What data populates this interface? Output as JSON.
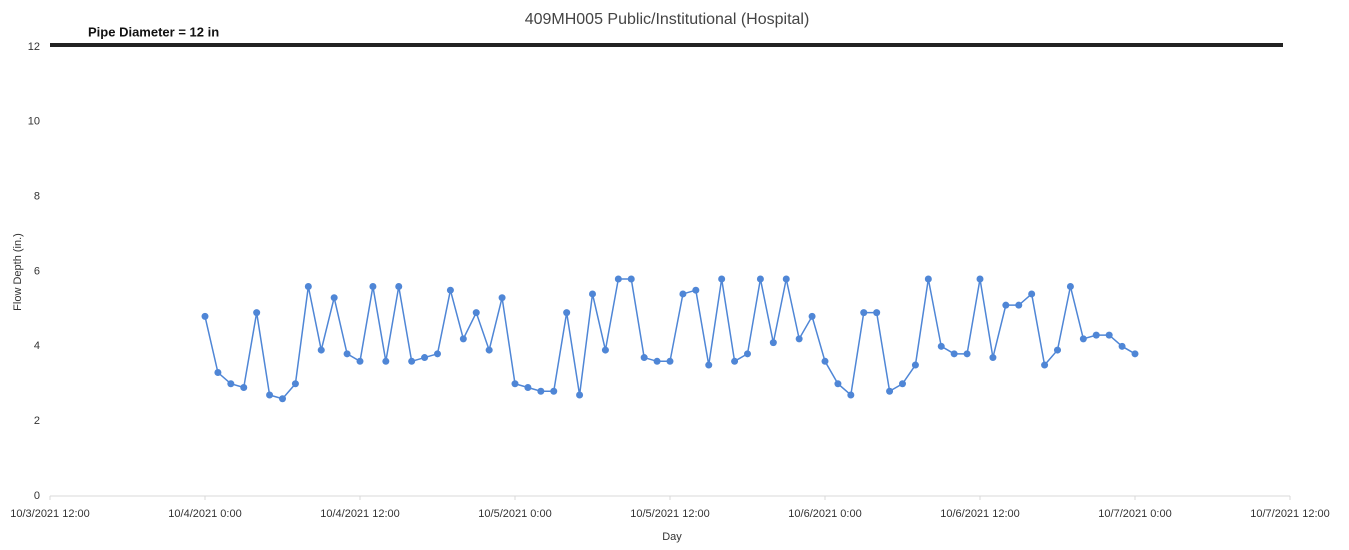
{
  "chart_data": {
    "type": "line",
    "title": "409MH005 Public/Institutional (Hospital)",
    "x_label": "Day",
    "y_label": "Flow Depth (in.)",
    "reference_line": {
      "value": 12,
      "label": "Pipe Diameter = 12 in",
      "color": "#222222"
    },
    "x": [
      "2021-10-04T00:00",
      "2021-10-04T01:00",
      "2021-10-04T02:00",
      "2021-10-04T03:00",
      "2021-10-04T04:00",
      "2021-10-04T05:00",
      "2021-10-04T06:00",
      "2021-10-04T07:00",
      "2021-10-04T08:00",
      "2021-10-04T09:00",
      "2021-10-04T10:00",
      "2021-10-04T11:00",
      "2021-10-04T12:00",
      "2021-10-04T13:00",
      "2021-10-04T14:00",
      "2021-10-04T15:00",
      "2021-10-04T16:00",
      "2021-10-04T17:00",
      "2021-10-04T18:00",
      "2021-10-04T19:00",
      "2021-10-04T20:00",
      "2021-10-04T21:00",
      "2021-10-04T22:00",
      "2021-10-04T23:00",
      "2021-10-05T00:00",
      "2021-10-05T01:00",
      "2021-10-05T02:00",
      "2021-10-05T03:00",
      "2021-10-05T04:00",
      "2021-10-05T05:00",
      "2021-10-05T06:00",
      "2021-10-05T07:00",
      "2021-10-05T08:00",
      "2021-10-05T09:00",
      "2021-10-05T10:00",
      "2021-10-05T11:00",
      "2021-10-05T12:00",
      "2021-10-05T13:00",
      "2021-10-05T14:00",
      "2021-10-05T15:00",
      "2021-10-05T16:00",
      "2021-10-05T17:00",
      "2021-10-05T18:00",
      "2021-10-05T19:00",
      "2021-10-05T20:00",
      "2021-10-05T21:00",
      "2021-10-05T22:00",
      "2021-10-05T23:00",
      "2021-10-06T00:00",
      "2021-10-06T01:00",
      "2021-10-06T02:00",
      "2021-10-06T03:00",
      "2021-10-06T04:00",
      "2021-10-06T05:00",
      "2021-10-06T06:00",
      "2021-10-06T07:00",
      "2021-10-06T08:00",
      "2021-10-06T09:00",
      "2021-10-06T10:00",
      "2021-10-06T11:00",
      "2021-10-06T12:00",
      "2021-10-06T13:00",
      "2021-10-06T14:00",
      "2021-10-06T15:00",
      "2021-10-06T16:00",
      "2021-10-06T17:00",
      "2021-10-06T18:00",
      "2021-10-06T19:00",
      "2021-10-06T20:00",
      "2021-10-06T21:00",
      "2021-10-06T22:00",
      "2021-10-06T23:00",
      "2021-10-07T00:00"
    ],
    "series": [
      {
        "name": "Flow Depth",
        "color": "#4f86d6",
        "values": [
          4.8,
          3.3,
          3.0,
          2.9,
          4.9,
          2.7,
          2.6,
          3.0,
          5.6,
          3.9,
          5.3,
          3.8,
          3.6,
          5.6,
          3.6,
          5.6,
          3.6,
          3.7,
          3.8,
          5.5,
          4.2,
          4.9,
          3.9,
          5.3,
          3.0,
          2.9,
          2.8,
          2.8,
          4.9,
          2.7,
          5.4,
          3.9,
          5.8,
          5.8,
          3.7,
          3.6,
          3.6,
          5.4,
          5.5,
          3.5,
          5.8,
          3.6,
          3.8,
          5.8,
          4.1,
          5.8,
          4.2,
          4.8,
          3.6,
          3.0,
          2.7,
          4.9,
          4.9,
          2.8,
          3.0,
          3.5,
          5.8,
          4.0,
          3.8,
          3.8,
          5.8,
          3.7,
          5.1,
          5.1,
          5.4,
          3.5,
          3.9,
          5.6,
          4.2,
          4.3,
          4.3,
          4.0,
          3.8
        ]
      }
    ],
    "xlim": [
      "2021-10-03T12:00",
      "2021-10-07T12:00"
    ],
    "xticks": [
      {
        "value": "2021-10-03T12:00",
        "label": "10/3/2021 12:00"
      },
      {
        "value": "2021-10-04T00:00",
        "label": "10/4/2021 0:00"
      },
      {
        "value": "2021-10-04T12:00",
        "label": "10/4/2021 12:00"
      },
      {
        "value": "2021-10-05T00:00",
        "label": "10/5/2021 0:00"
      },
      {
        "value": "2021-10-05T12:00",
        "label": "10/5/2021 12:00"
      },
      {
        "value": "2021-10-06T00:00",
        "label": "10/6/2021 0:00"
      },
      {
        "value": "2021-10-06T12:00",
        "label": "10/6/2021 12:00"
      },
      {
        "value": "2021-10-07T00:00",
        "label": "10/7/2021 0:00"
      },
      {
        "value": "2021-10-07T12:00",
        "label": "10/7/2021 12:00"
      }
    ],
    "ylim": [
      0,
      12
    ],
    "yticks": [
      0,
      2,
      4,
      6,
      8,
      10,
      12
    ],
    "grid": false
  }
}
